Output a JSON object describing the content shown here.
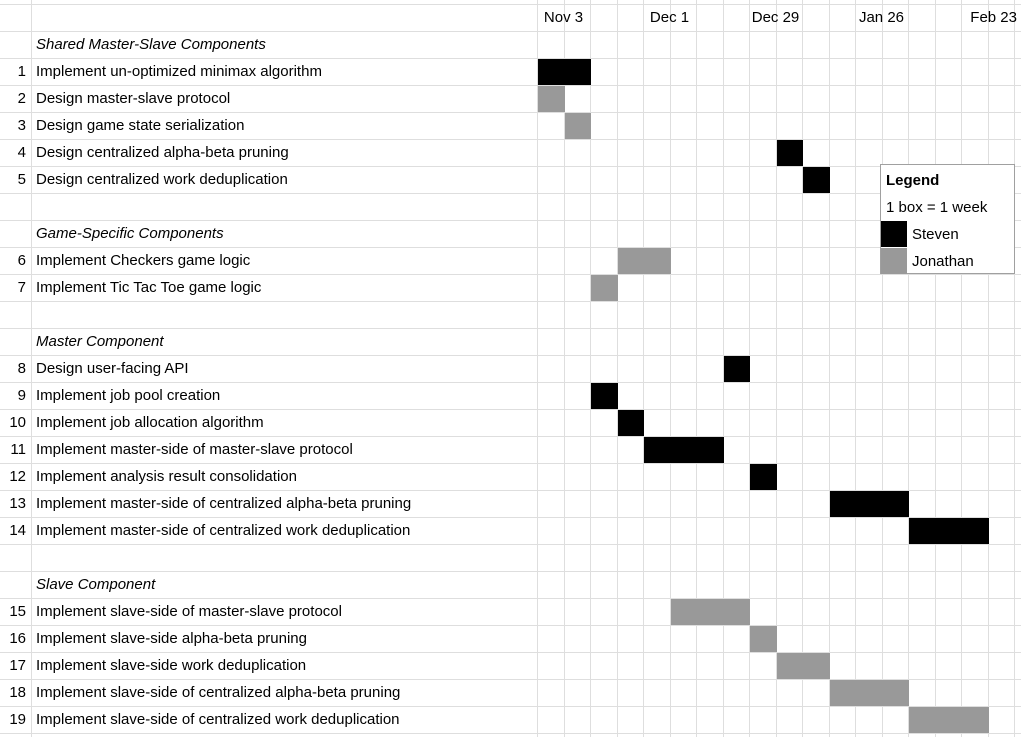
{
  "timeline_header": [
    "Nov 3",
    "Dec 1",
    "Dec 29",
    "Jan 26",
    "Feb 23"
  ],
  "legend": {
    "title": "Legend",
    "scale": "1 box = 1 week",
    "items": [
      {
        "name": "Steven",
        "color": "#000000"
      },
      {
        "name": "Jonathan",
        "color": "#999999"
      }
    ]
  },
  "rows": [
    {
      "kind": "section",
      "label": "Shared Master-Slave Components"
    },
    {
      "kind": "task",
      "num": "1",
      "label": "Implement un-optimized minimax algorithm"
    },
    {
      "kind": "task",
      "num": "2",
      "label": "Design master-slave protocol"
    },
    {
      "kind": "task",
      "num": "3",
      "label": "Design game state serialization"
    },
    {
      "kind": "task",
      "num": "4",
      "label": "Design centralized alpha-beta pruning"
    },
    {
      "kind": "task",
      "num": "5",
      "label": "Design centralized work deduplication"
    },
    {
      "kind": "blank"
    },
    {
      "kind": "section",
      "label": "Game-Specific Components"
    },
    {
      "kind": "task",
      "num": "6",
      "label": "Implement Checkers game logic"
    },
    {
      "kind": "task",
      "num": "7",
      "label": "Implement Tic Tac Toe game logic"
    },
    {
      "kind": "blank"
    },
    {
      "kind": "section",
      "label": "Master Component"
    },
    {
      "kind": "task",
      "num": "8",
      "label": "Design user-facing API"
    },
    {
      "kind": "task",
      "num": "9",
      "label": "Implement job pool creation"
    },
    {
      "kind": "task",
      "num": "10",
      "label": "Implement job allocation algorithm"
    },
    {
      "kind": "task",
      "num": "11",
      "label": "Implement master-side of master-slave protocol"
    },
    {
      "kind": "task",
      "num": "12",
      "label": "Implement analysis result consolidation"
    },
    {
      "kind": "task",
      "num": "13",
      "label": "Implement master-side of centralized alpha-beta pruning"
    },
    {
      "kind": "task",
      "num": "14",
      "label": "Implement master-side of centralized work deduplication"
    },
    {
      "kind": "blank"
    },
    {
      "kind": "section",
      "label": "Slave Component"
    },
    {
      "kind": "task",
      "num": "15",
      "label": "Implement slave-side of master-slave protocol"
    },
    {
      "kind": "task",
      "num": "16",
      "label": "Implement slave-side alpha-beta pruning"
    },
    {
      "kind": "task",
      "num": "17",
      "label": "Implement slave-side work deduplication"
    },
    {
      "kind": "task",
      "num": "18",
      "label": "Implement slave-side of centralized alpha-beta pruning"
    },
    {
      "kind": "task",
      "num": "19",
      "label": "Implement slave-side of centralized work deduplication"
    }
  ],
  "chart_data": {
    "type": "gantt",
    "x_unit": "week",
    "x_ticks": [
      {
        "label": "Nov 3",
        "date": "Nov 3"
      },
      {
        "label": "Dec 1",
        "date": "Dec 1"
      },
      {
        "label": "Dec 29",
        "date": "Dec 29"
      },
      {
        "label": "Jan 26",
        "date": "Jan 26"
      },
      {
        "label": "Feb 23",
        "date": "Feb 23"
      }
    ],
    "week_starts": [
      "Nov 3",
      "Nov 10",
      "Nov 17",
      "Nov 24",
      "Dec 1",
      "Dec 8",
      "Dec 15",
      "Dec 22",
      "Dec 29",
      "Jan 5",
      "Jan 12",
      "Jan 19",
      "Jan 26",
      "Feb 2",
      "Feb 9",
      "Feb 16",
      "Feb 23",
      "Mar 2"
    ],
    "series": [
      {
        "name": "Steven",
        "color": "#000000"
      },
      {
        "name": "Jonathan",
        "color": "#999999"
      }
    ],
    "tasks": [
      {
        "num": "1",
        "owner": "Steven",
        "start": "Nov 3",
        "weeks": 2
      },
      {
        "num": "2",
        "owner": "Jonathan",
        "start": "Nov 3",
        "weeks": 1
      },
      {
        "num": "3",
        "owner": "Jonathan",
        "start": "Nov 10",
        "weeks": 1
      },
      {
        "num": "4",
        "owner": "Steven",
        "start": "Jan 5",
        "weeks": 1
      },
      {
        "num": "5",
        "owner": "Steven",
        "start": "Jan 12",
        "weeks": 1
      },
      {
        "num": "6",
        "owner": "Jonathan",
        "start": "Nov 24",
        "weeks": 2
      },
      {
        "num": "7",
        "owner": "Jonathan",
        "start": "Nov 17",
        "weeks": 1
      },
      {
        "num": "8",
        "owner": "Steven",
        "start": "Dec 22",
        "weeks": 1
      },
      {
        "num": "9",
        "owner": "Steven",
        "start": "Nov 17",
        "weeks": 1
      },
      {
        "num": "10",
        "owner": "Steven",
        "start": "Nov 24",
        "weeks": 1
      },
      {
        "num": "11",
        "owner": "Steven",
        "start": "Dec 1",
        "weeks": 3
      },
      {
        "num": "12",
        "owner": "Steven",
        "start": "Dec 29",
        "weeks": 1
      },
      {
        "num": "13",
        "owner": "Steven",
        "start": "Jan 19",
        "weeks": 3
      },
      {
        "num": "14",
        "owner": "Steven",
        "start": "Feb 9",
        "weeks": 3
      },
      {
        "num": "15",
        "owner": "Jonathan",
        "start": "Dec 8",
        "weeks": 3
      },
      {
        "num": "16",
        "owner": "Jonathan",
        "start": "Dec 29",
        "weeks": 1
      },
      {
        "num": "17",
        "owner": "Jonathan",
        "start": "Jan 5",
        "weeks": 2
      },
      {
        "num": "18",
        "owner": "Jonathan",
        "start": "Jan 19",
        "weeks": 3
      },
      {
        "num": "19",
        "owner": "Jonathan",
        "start": "Feb 9",
        "weeks": 3
      }
    ]
  }
}
